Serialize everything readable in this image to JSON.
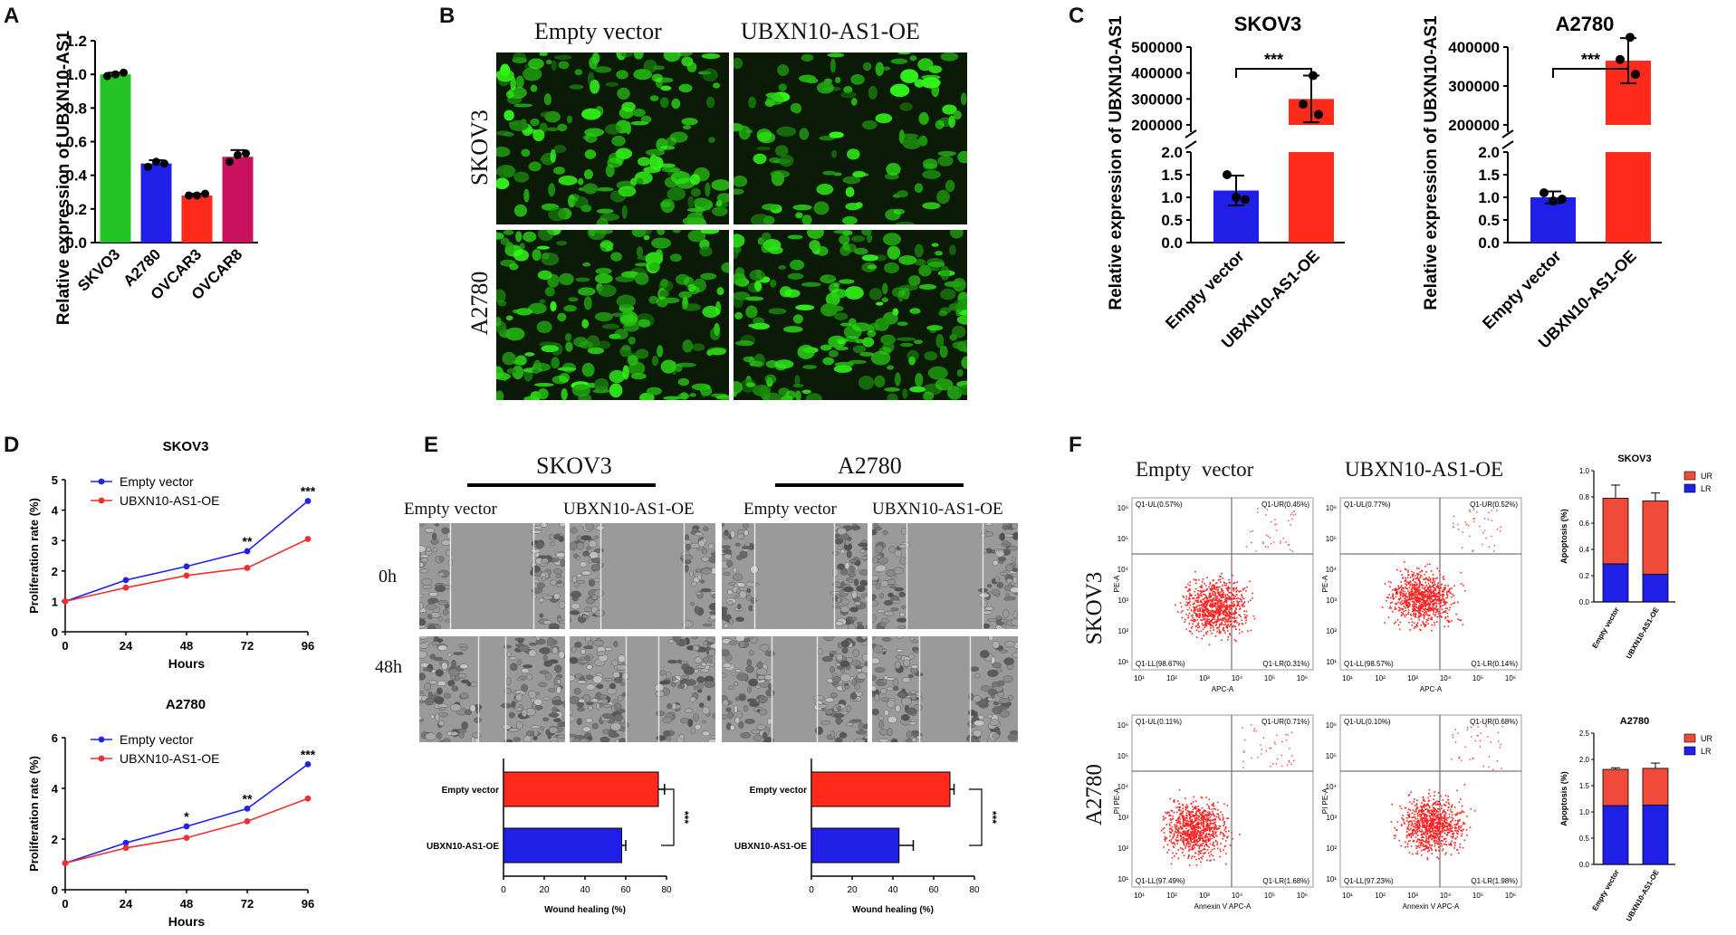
{
  "panels": {
    "A": {
      "label": "A"
    },
    "B": {
      "label": "B",
      "col_labels": [
        "Empty vector",
        "UBXN10-AS1-OE"
      ],
      "row_labels": [
        "SKOV3",
        "A2780"
      ]
    },
    "C": {
      "label": "C"
    },
    "D": {
      "label": "D"
    },
    "E": {
      "label": "E",
      "cell_lines": [
        "SKOV3",
        "A2780"
      ],
      "col_labels": [
        "Empty vector",
        "UBXN10-AS1-OE",
        "Empty vector",
        "UBXN10-AS1-OE"
      ],
      "row_labels": [
        "0h",
        "48h"
      ]
    },
    "F": {
      "label": "F",
      "col_labels": [
        "Empty  vector",
        "UBXN10-AS1-OE"
      ],
      "row_labels": [
        "SKOV3",
        "A2780"
      ]
    }
  },
  "flow": {
    "SKOV3": {
      "ylabel": "PE-A",
      "xlabel": "APC-A",
      "empty": {
        "UL": "Q1-UL(0.57%)",
        "UR": "Q1-UR(0.45%)",
        "LL": "Q1-LL(98.67%)",
        "LR": "Q1-LR(0.31%)"
      },
      "oe": {
        "UL": "Q1-UL(0.77%)",
        "UR": "Q1-UR(0.52%)",
        "LL": "Q1-LL(98.57%)",
        "LR": "Q1-LR(0.14%)"
      }
    },
    "A2780": {
      "ylabel": "PI PE-A",
      "xlabel": "Annexin V APC-A",
      "empty": {
        "UL": "Q1-UL(0.11%)",
        "UR": "Q1-UR(0.71%)",
        "LL": "Q1-LL(97.49%)",
        "LR": "Q1-LR(1.68%)"
      },
      "oe": {
        "UL": "Q1-UL(0.10%)",
        "UR": "Q1-UR(0.68%)",
        "LL": "Q1-LL(97.23%)",
        "LR": "Q1-LR(1.98%)"
      }
    },
    "ticks": [
      "10¹",
      "10²",
      "10³",
      "10⁴",
      "10⁵",
      "10⁶"
    ]
  },
  "chart_data": [
    {
      "id": "A",
      "type": "bar",
      "categories": [
        "SKVO3",
        "A2780",
        "OVCAR3",
        "OVCAR8"
      ],
      "values": [
        1.0,
        0.47,
        0.28,
        0.51
      ],
      "errors": [
        0.01,
        0.02,
        0.01,
        0.04
      ],
      "points": [
        [
          0.99,
          1.0,
          1.01
        ],
        [
          0.45,
          0.48,
          0.47
        ],
        [
          0.28,
          0.28,
          0.29
        ],
        [
          0.48,
          0.52,
          0.53
        ]
      ],
      "colors": [
        "#22c324",
        "#1f1fe8",
        "#ff2a1a",
        "#c8125e"
      ],
      "ylabel": "Relative expression of UBXN10-AS1",
      "ylim": [
        0,
        1.2
      ],
      "yticks": [
        "0.0",
        "0.2",
        "0.4",
        "0.6",
        "0.8",
        "1.0",
        "1.2"
      ]
    },
    {
      "id": "C1",
      "type": "bar",
      "title": "SKOV3",
      "categories": [
        "Empty vector",
        "UBXN10-AS1-OE"
      ],
      "values": [
        1.15,
        300000
      ],
      "errors": [
        0.33,
        90000
      ],
      "points": [
        [
          1.5,
          1.0,
          0.95
        ],
        [
          390000,
          280000,
          240000
        ]
      ],
      "colors": [
        "#1f1fe8",
        "#ff2a1a"
      ],
      "ylabel": "Relative expression of UBXN10-AS1",
      "ylim_low": [
        0,
        2.0
      ],
      "yticks_low": [
        "0.0",
        "0.5",
        "1.0",
        "1.5",
        "2.0"
      ],
      "ylim_high": [
        200000,
        500000
      ],
      "yticks_high": [
        "200000",
        "300000",
        "400000",
        "500000"
      ],
      "significance": "***"
    },
    {
      "id": "C2",
      "type": "bar",
      "title": "A2780",
      "categories": [
        "Empty vector",
        "UBXN10-AS1-OE"
      ],
      "values": [
        1.0,
        365000
      ],
      "errors": [
        0.13,
        58000
      ],
      "points": [
        [
          1.1,
          0.92,
          0.96
        ],
        [
          425000,
          368000,
          330000
        ]
      ],
      "colors": [
        "#1f1fe8",
        "#ff2a1a"
      ],
      "ylabel": "Relative expression of UBXN10-AS1",
      "ylim_low": [
        0,
        2.0
      ],
      "yticks_low": [
        "0.0",
        "0.5",
        "1.0",
        "1.5",
        "2.0"
      ],
      "ylim_high": [
        200000,
        400000
      ],
      "yticks_high": [
        "200000",
        "300000",
        "400000"
      ],
      "significance": "***"
    },
    {
      "id": "D1",
      "type": "line",
      "title": "SKOV3",
      "x": [
        0,
        24,
        48,
        72,
        96
      ],
      "series": [
        {
          "name": "Empty vector",
          "values": [
            1.0,
            1.7,
            2.15,
            2.65,
            4.3
          ],
          "color": "#2222ee"
        },
        {
          "name": "UBXN10-AS1-OE",
          "values": [
            1.0,
            1.45,
            1.85,
            2.1,
            3.05
          ],
          "color": "#f03030"
        }
      ],
      "xlabel": "Hours",
      "ylabel": "Proliferation rate (%)",
      "ylim": [
        0,
        5
      ],
      "yticks": [
        "0",
        "1",
        "2",
        "3",
        "4",
        "5"
      ],
      "xticks": [
        "0",
        "24",
        "48",
        "72",
        "96"
      ],
      "significance": [
        "",
        "",
        "",
        "**",
        "***"
      ]
    },
    {
      "id": "D2",
      "type": "line",
      "title": "A2780",
      "x": [
        0,
        24,
        48,
        72,
        96
      ],
      "series": [
        {
          "name": "Empty vector",
          "values": [
            1.05,
            1.85,
            2.5,
            3.2,
            4.95
          ],
          "color": "#2222ee"
        },
        {
          "name": "UBXN10-AS1-OE",
          "values": [
            1.05,
            1.65,
            2.05,
            2.7,
            3.6
          ],
          "color": "#f03030"
        }
      ],
      "xlabel": "Hours",
      "ylabel": "Proliferation rate (%)",
      "ylim": [
        0,
        6
      ],
      "yticks": [
        "0",
        "2",
        "4",
        "6"
      ],
      "xticks": [
        "0",
        "24",
        "48",
        "72",
        "96"
      ],
      "significance": [
        "",
        "",
        "*",
        "**",
        "***"
      ]
    },
    {
      "id": "E1",
      "type": "bar",
      "orientation": "horizontal",
      "categories": [
        "Empty vector",
        "UBXN10-AS1-OE"
      ],
      "values": [
        76,
        58
      ],
      "errors": [
        3,
        2
      ],
      "colors": [
        "#ff2a1a",
        "#1f1fe8"
      ],
      "xlabel": "Wound healing (%)",
      "xlim": [
        0,
        80
      ],
      "xticks": [
        "0",
        "20",
        "40",
        "60",
        "80"
      ],
      "significance": "***"
    },
    {
      "id": "E2",
      "type": "bar",
      "orientation": "horizontal",
      "categories": [
        "Empty vector",
        "UBXN10-AS1-OE"
      ],
      "values": [
        68,
        43
      ],
      "errors": [
        2,
        7
      ],
      "colors": [
        "#ff2a1a",
        "#1f1fe8"
      ],
      "xlabel": "Wound healing (%)",
      "xlim": [
        0,
        80
      ],
      "xticks": [
        "0",
        "20",
        "40",
        "60",
        "80"
      ],
      "significance": "***"
    },
    {
      "id": "F1",
      "type": "bar",
      "stacked": true,
      "title": "SKOV3",
      "categories": [
        "Empty vector",
        "UBXN10-AS1-OE"
      ],
      "series": [
        {
          "name": "LR",
          "values": [
            0.29,
            0.21
          ],
          "color": "#1f1fe8"
        },
        {
          "name": "UR",
          "values": [
            0.5,
            0.56
          ],
          "color": "#f04a3a"
        }
      ],
      "errors": [
        0.1,
        0.06
      ],
      "ylabel": "Apoptosis (%)",
      "ylim": [
        0,
        1.0
      ],
      "yticks": [
        "0.0",
        "0.2",
        "0.4",
        "0.6",
        "0.8",
        "1.0"
      ]
    },
    {
      "id": "F2",
      "type": "bar",
      "stacked": true,
      "title": "A2780",
      "categories": [
        "Empty vector",
        "UBXN10-AS1-OE"
      ],
      "series": [
        {
          "name": "LR",
          "values": [
            1.12,
            1.13
          ],
          "color": "#1f1fe8"
        },
        {
          "name": "UR",
          "values": [
            0.69,
            0.7
          ],
          "color": "#f04a3a"
        }
      ],
      "errors": [
        0.03,
        0.1
      ],
      "ylabel": "Apoptosis (%)",
      "ylim": [
        0,
        2.5
      ],
      "yticks": [
        "0.0",
        "0.5",
        "1.0",
        "1.5",
        "2.0",
        "2.5"
      ]
    }
  ]
}
